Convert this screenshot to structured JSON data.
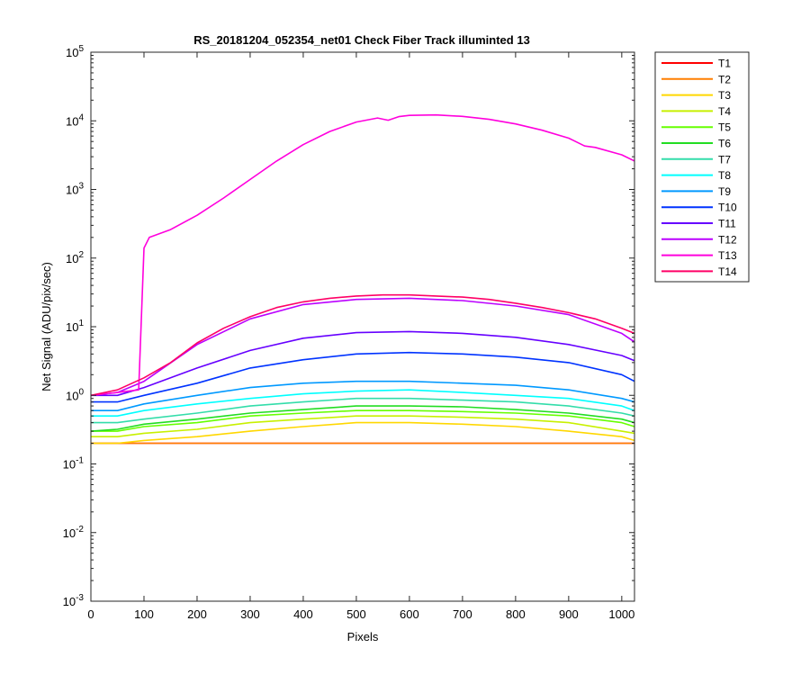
{
  "chart_data": {
    "type": "line",
    "title": "RS_20181204_052354_net01   Check Fiber     Track illuminted 13",
    "xlabel": "Pixels",
    "ylabel": "Net Signal (ADU/pix/sec)",
    "xlim": [
      0,
      1024
    ],
    "ylim": [
      0.001,
      100000
    ],
    "yscale": "log",
    "grid": false,
    "legend_position": "outside-right",
    "x_ticks": [
      "0",
      "100",
      "200",
      "300",
      "400",
      "500",
      "600",
      "700",
      "800",
      "900",
      "1000"
    ],
    "y_ticks": [
      {
        "base": "10",
        "exp": "-3"
      },
      {
        "base": "10",
        "exp": "-2"
      },
      {
        "base": "10",
        "exp": "-1"
      },
      {
        "base": "10",
        "exp": "0"
      },
      {
        "base": "10",
        "exp": "1"
      },
      {
        "base": "10",
        "exp": "2"
      },
      {
        "base": "10",
        "exp": "3"
      },
      {
        "base": "10",
        "exp": "4"
      },
      {
        "base": "10",
        "exp": "5"
      }
    ],
    "series": [
      {
        "name": "T1",
        "color": "#ff0000",
        "x": [
          0,
          50,
          100,
          200,
          300,
          400,
          500,
          600,
          700,
          800,
          900,
          1000,
          1024
        ],
        "y": [
          0.2,
          0.2,
          0.2,
          0.2,
          0.2,
          0.2,
          0.2,
          0.2,
          0.2,
          0.2,
          0.2,
          0.2,
          0.2
        ]
      },
      {
        "name": "T2",
        "color": "#ff7f00",
        "x": [
          0,
          50,
          100,
          200,
          300,
          400,
          500,
          600,
          700,
          800,
          900,
          1000,
          1024
        ],
        "y": [
          0.2,
          0.2,
          0.2,
          0.2,
          0.2,
          0.2,
          0.2,
          0.2,
          0.2,
          0.2,
          0.2,
          0.2,
          0.2
        ]
      },
      {
        "name": "T3",
        "color": "#ffd700",
        "x": [
          0,
          50,
          100,
          200,
          300,
          400,
          500,
          600,
          700,
          800,
          900,
          1000,
          1024
        ],
        "y": [
          0.2,
          0.2,
          0.22,
          0.25,
          0.3,
          0.35,
          0.4,
          0.4,
          0.38,
          0.35,
          0.3,
          0.25,
          0.22
        ]
      },
      {
        "name": "T4",
        "color": "#c8f000",
        "x": [
          0,
          50,
          100,
          200,
          300,
          400,
          500,
          600,
          700,
          800,
          900,
          1000,
          1024
        ],
        "y": [
          0.25,
          0.25,
          0.28,
          0.32,
          0.4,
          0.45,
          0.5,
          0.5,
          0.48,
          0.45,
          0.4,
          0.3,
          0.28
        ]
      },
      {
        "name": "T5",
        "color": "#66ff00",
        "x": [
          0,
          50,
          100,
          200,
          300,
          400,
          500,
          600,
          700,
          800,
          900,
          1000,
          1024
        ],
        "y": [
          0.3,
          0.3,
          0.35,
          0.4,
          0.5,
          0.55,
          0.6,
          0.6,
          0.58,
          0.55,
          0.5,
          0.4,
          0.35
        ]
      },
      {
        "name": "T6",
        "color": "#22dd22",
        "x": [
          0,
          50,
          100,
          200,
          300,
          400,
          500,
          600,
          700,
          800,
          900,
          1000,
          1024
        ],
        "y": [
          0.3,
          0.32,
          0.38,
          0.45,
          0.55,
          0.62,
          0.7,
          0.7,
          0.68,
          0.62,
          0.55,
          0.45,
          0.4
        ]
      },
      {
        "name": "T7",
        "color": "#33ddaa",
        "x": [
          0,
          50,
          100,
          200,
          300,
          400,
          500,
          600,
          700,
          800,
          900,
          1000,
          1024
        ],
        "y": [
          0.4,
          0.4,
          0.45,
          0.55,
          0.7,
          0.8,
          0.9,
          0.9,
          0.85,
          0.8,
          0.7,
          0.55,
          0.5
        ]
      },
      {
        "name": "T8",
        "color": "#00ffff",
        "x": [
          0,
          50,
          100,
          200,
          300,
          400,
          500,
          600,
          700,
          800,
          900,
          1000,
          1024
        ],
        "y": [
          0.5,
          0.5,
          0.6,
          0.75,
          0.9,
          1.05,
          1.15,
          1.2,
          1.1,
          1.0,
          0.9,
          0.7,
          0.6
        ]
      },
      {
        "name": "T9",
        "color": "#0099ff",
        "x": [
          0,
          50,
          100,
          200,
          300,
          400,
          500,
          600,
          700,
          800,
          900,
          1000,
          1024
        ],
        "y": [
          0.6,
          0.6,
          0.75,
          1.0,
          1.3,
          1.5,
          1.6,
          1.6,
          1.5,
          1.4,
          1.2,
          0.9,
          0.8
        ]
      },
      {
        "name": "T10",
        "color": "#0033ff",
        "x": [
          0,
          50,
          100,
          200,
          300,
          400,
          500,
          600,
          700,
          800,
          900,
          1000,
          1024
        ],
        "y": [
          0.8,
          0.8,
          1.0,
          1.5,
          2.5,
          3.3,
          4.0,
          4.2,
          4.0,
          3.6,
          3.0,
          2.0,
          1.6
        ]
      },
      {
        "name": "T11",
        "color": "#6600ff",
        "x": [
          0,
          50,
          100,
          200,
          300,
          400,
          500,
          600,
          700,
          800,
          900,
          1000,
          1024
        ],
        "y": [
          1.0,
          1.0,
          1.3,
          2.5,
          4.5,
          6.8,
          8.2,
          8.5,
          8.0,
          7.0,
          5.5,
          3.8,
          3.2
        ]
      },
      {
        "name": "T12",
        "color": "#bb00ff",
        "x": [
          0,
          50,
          100,
          200,
          300,
          400,
          500,
          600,
          700,
          800,
          900,
          1000,
          1024
        ],
        "y": [
          1.0,
          1.1,
          1.6,
          5.5,
          13,
          21,
          25,
          26,
          24,
          20,
          15,
          8,
          6
        ]
      },
      {
        "name": "T13",
        "color": "#ff00dd",
        "x": [
          0,
          50,
          90,
          100,
          110,
          150,
          200,
          250,
          300,
          350,
          400,
          450,
          500,
          540,
          560,
          580,
          600,
          650,
          700,
          750,
          800,
          850,
          900,
          930,
          950,
          1000,
          1024
        ],
        "y": [
          1.0,
          1.1,
          1.2,
          140,
          200,
          260,
          420,
          750,
          1400,
          2600,
          4500,
          7000,
          9600,
          11000,
          10200,
          11500,
          12000,
          12200,
          11600,
          10500,
          9000,
          7300,
          5600,
          4300,
          4100,
          3200,
          2600
        ]
      },
      {
        "name": "T14",
        "color": "#ff0066",
        "x": [
          0,
          50,
          100,
          150,
          200,
          250,
          300,
          350,
          400,
          450,
          500,
          550,
          600,
          650,
          700,
          750,
          800,
          850,
          900,
          950,
          1000,
          1024
        ],
        "y": [
          1.0,
          1.2,
          1.8,
          3.0,
          5.8,
          9.5,
          14,
          19,
          23,
          26,
          28,
          29,
          29,
          28,
          27,
          25,
          22,
          19,
          16,
          13,
          9.5,
          8
        ]
      }
    ]
  }
}
